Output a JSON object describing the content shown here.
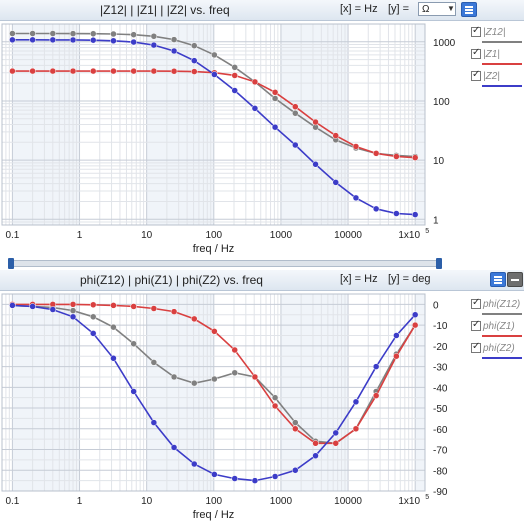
{
  "colors": {
    "z12": "#808080",
    "z1": "#d94040",
    "z2": "#3c3cc8",
    "grid_minor": "#e1e4e9",
    "grid_major": "#c6ccd6",
    "band": "#f0f4f9"
  },
  "top": {
    "title": "|Z12| | |Z1| | |Z2| vs. freq",
    "x_unit_label": "[x] = Hz",
    "y_unit_label": "[y] =",
    "y_unit_value": "Ω",
    "menu_icon": "menu-icon",
    "legend": [
      "|Z12|",
      "|Z1|",
      "|Z2|"
    ]
  },
  "bottom": {
    "title": "phi(Z12) | phi(Z1) | phi(Z2) vs. freq",
    "x_unit_label": "[x] = Hz",
    "y_unit_label": "[y] = deg",
    "menu_icon": "menu-icon",
    "minimize_icon": "minimize-icon",
    "legend": [
      "phi(Z12)",
      "phi(Z1)",
      "phi(Z2)"
    ]
  },
  "chart_data": [
    {
      "type": "line",
      "title": "|Z12| | |Z1| | |Z2| vs. freq",
      "xlabel": "freq / Hz",
      "ylabel": "",
      "xscale": "log",
      "yscale": "log",
      "xlim": [
        0.07,
        140000
      ],
      "ylim": [
        0.8,
        2000
      ],
      "x_ticks": [
        "0.1",
        "1",
        "10",
        "100",
        "1000",
        "10000",
        "1x10"
      ],
      "x_tick_exp": "5",
      "y_ticks": [
        "1",
        "10",
        "100",
        "1000"
      ],
      "grid": true,
      "legend_position": "right",
      "series": [
        {
          "name": "|Z12|",
          "color": "#808080",
          "x": [
            0.1,
            0.2,
            0.4,
            0.8,
            1.6,
            3.2,
            6.4,
            12.8,
            25.6,
            51.2,
            102,
            205,
            410,
            819,
            1638,
            3277,
            6554,
            13107,
            26214,
            52429,
            100000
          ],
          "y": [
            1380,
            1380,
            1380,
            1375,
            1370,
            1355,
            1320,
            1240,
            1090,
            860,
            600,
            370,
            210,
            110,
            62,
            36,
            22,
            16,
            13,
            12,
            11.5
          ]
        },
        {
          "name": "|Z1|",
          "color": "#d94040",
          "x": [
            0.1,
            0.2,
            0.4,
            0.8,
            1.6,
            3.2,
            6.4,
            12.8,
            25.6,
            51.2,
            102,
            205,
            410,
            819,
            1638,
            3277,
            6554,
            13107,
            26214,
            52429,
            100000
          ],
          "y": [
            320,
            320,
            320,
            320,
            320,
            320,
            320,
            320,
            318,
            314,
            300,
            270,
            210,
            140,
            80,
            44,
            26,
            17,
            13,
            11.5,
            11
          ]
        },
        {
          "name": "|Z2|",
          "color": "#3c3cc8",
          "x": [
            0.1,
            0.2,
            0.4,
            0.8,
            1.6,
            3.2,
            6.4,
            12.8,
            25.6,
            51.2,
            102,
            205,
            410,
            819,
            1638,
            3277,
            6554,
            13107,
            26214,
            52429,
            100000
          ],
          "y": [
            1080,
            1080,
            1078,
            1075,
            1065,
            1040,
            990,
            880,
            700,
            480,
            280,
            150,
            75,
            36,
            18,
            8.5,
            4.2,
            2.3,
            1.5,
            1.25,
            1.2
          ]
        }
      ]
    },
    {
      "type": "line",
      "title": "phi(Z12) | phi(Z1) | phi(Z2) vs. freq",
      "xlabel": "freq / Hz",
      "ylabel": "",
      "xscale": "log",
      "xlim": [
        0.07,
        140000
      ],
      "ylim": [
        -90,
        5
      ],
      "x_ticks": [
        "0.1",
        "1",
        "10",
        "100",
        "1000",
        "10000",
        "1x10"
      ],
      "x_tick_exp": "5",
      "y_ticks": [
        "0",
        "-10",
        "-20",
        "-30",
        "-40",
        "-50",
        "-60",
        "-70",
        "-80",
        "-90"
      ],
      "grid": true,
      "legend_position": "right",
      "series": [
        {
          "name": "phi(Z12)",
          "color": "#808080",
          "x": [
            0.1,
            0.2,
            0.4,
            0.8,
            1.6,
            3.2,
            6.4,
            12.8,
            25.6,
            51.2,
            102,
            205,
            410,
            819,
            1638,
            3277,
            6554,
            13107,
            26214,
            52429,
            100000
          ],
          "y": [
            -0.5,
            -1,
            -1.5,
            -3,
            -6,
            -11,
            -19,
            -28,
            -35,
            -38,
            -36,
            -33,
            -35,
            -45,
            -57,
            -66,
            -67,
            -60,
            -42,
            -24,
            -10
          ]
        },
        {
          "name": "phi(Z1)",
          "color": "#d94040",
          "x": [
            0.1,
            0.2,
            0.4,
            0.8,
            1.6,
            3.2,
            6.4,
            12.8,
            25.6,
            51.2,
            102,
            205,
            410,
            819,
            1638,
            3277,
            6554,
            13107,
            26214,
            52429,
            100000
          ],
          "y": [
            0,
            0,
            0,
            0,
            -0.2,
            -0.5,
            -1,
            -2,
            -3.5,
            -7,
            -13,
            -22,
            -35,
            -49,
            -60,
            -67,
            -67,
            -60,
            -44,
            -25,
            -10
          ]
        },
        {
          "name": "phi(Z2)",
          "color": "#3c3cc8",
          "x": [
            0.1,
            0.2,
            0.4,
            0.8,
            1.6,
            3.2,
            6.4,
            12.8,
            25.6,
            51.2,
            102,
            205,
            410,
            819,
            1638,
            3277,
            6554,
            13107,
            26214,
            52429,
            100000
          ],
          "y": [
            -0.5,
            -1,
            -2.5,
            -6,
            -14,
            -26,
            -42,
            -57,
            -69,
            -77,
            -82,
            -84,
            -85,
            -83,
            -80,
            -73,
            -62,
            -47,
            -30,
            -15,
            -5
          ]
        }
      ]
    }
  ]
}
